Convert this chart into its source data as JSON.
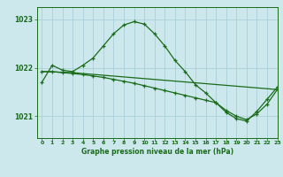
{
  "title": "Graphe pression niveau de la mer (hPa)",
  "background_color": "#cce8ec",
  "grid_color": "#aad0d8",
  "line_color": "#1a6b1a",
  "xlim": [
    -0.5,
    23
  ],
  "ylim": [
    1020.55,
    1023.25
  ],
  "yticks": [
    1021,
    1022,
    1023
  ],
  "xticks": [
    0,
    1,
    2,
    3,
    4,
    5,
    6,
    7,
    8,
    9,
    10,
    11,
    12,
    13,
    14,
    15,
    16,
    17,
    18,
    19,
    20,
    21,
    22,
    23
  ],
  "series": [
    {
      "x": [
        0,
        1,
        2,
        3,
        4,
        5,
        6,
        7,
        8,
        9,
        10,
        11,
        12,
        13,
        14,
        15,
        16,
        17,
        18,
        19,
        20,
        21,
        22,
        23
      ],
      "y": [
        1021.7,
        1022.05,
        1021.95,
        1021.92,
        1022.05,
        1022.2,
        1022.45,
        1022.7,
        1022.88,
        1022.95,
        1022.9,
        1022.7,
        1022.45,
        1022.15,
        1021.92,
        1021.65,
        1021.48,
        1021.28,
        1021.08,
        1020.95,
        1020.9,
        1021.1,
        1021.35,
        1021.6
      ]
    },
    {
      "x": [
        0,
        1,
        2,
        3,
        4,
        5,
        6,
        7,
        8,
        9,
        10,
        11,
        12,
        13,
        14,
        15,
        16,
        17,
        18,
        19,
        20,
        21,
        22,
        23
      ],
      "y": [
        1021.92,
        1021.92,
        1021.9,
        1021.88,
        1021.86,
        1021.83,
        1021.8,
        1021.76,
        1021.72,
        1021.68,
        1021.63,
        1021.58,
        1021.53,
        1021.48,
        1021.43,
        1021.38,
        1021.33,
        1021.28,
        1021.12,
        1021.0,
        1020.93,
        1021.05,
        1021.25,
        1021.55
      ]
    },
    {
      "x": [
        0,
        3,
        4,
        23
      ],
      "y": [
        1021.92,
        1021.9,
        1021.88,
        1021.55
      ]
    }
  ]
}
